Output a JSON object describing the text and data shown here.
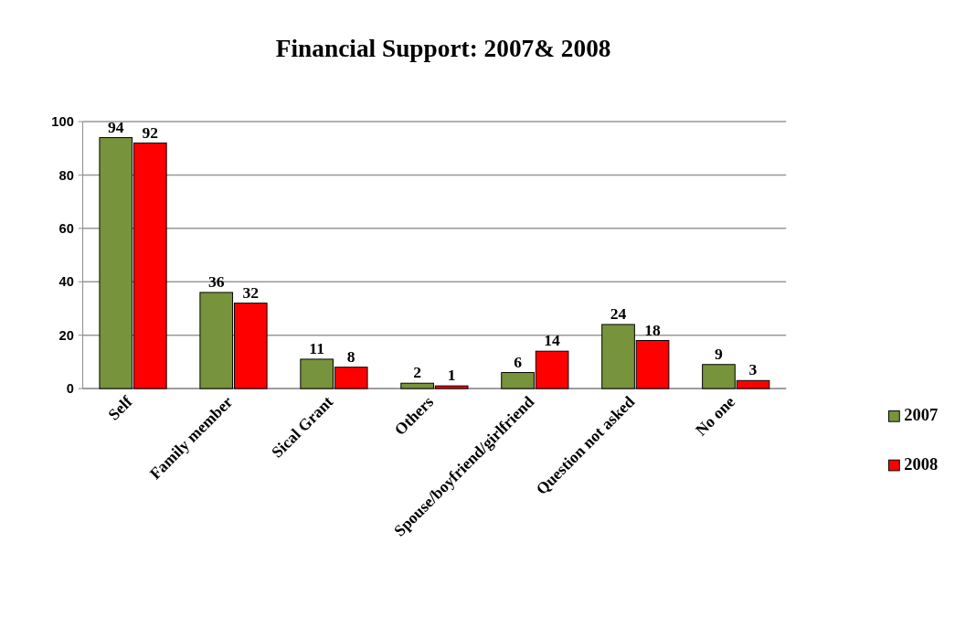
{
  "chart_data": {
    "type": "bar",
    "title": "Financial Support: 2007& 2008",
    "categories": [
      "Self",
      "Family member",
      "Sical Grant",
      "Others",
      "Spouse/boyfriend/girlfriend",
      "Question not asked",
      "No one"
    ],
    "series": [
      {
        "name": "2007",
        "color": "#77933c",
        "values": [
          94,
          36,
          11,
          2,
          6,
          24,
          9
        ]
      },
      {
        "name": "2008",
        "color": "#ff0000",
        "values": [
          92,
          32,
          8,
          1,
          14,
          18,
          3
        ]
      }
    ],
    "ylim": [
      0,
      100
    ],
    "yticks": [
      0,
      20,
      40,
      60,
      80,
      100
    ],
    "grid": "y",
    "legend": "right",
    "data_labels": true
  }
}
